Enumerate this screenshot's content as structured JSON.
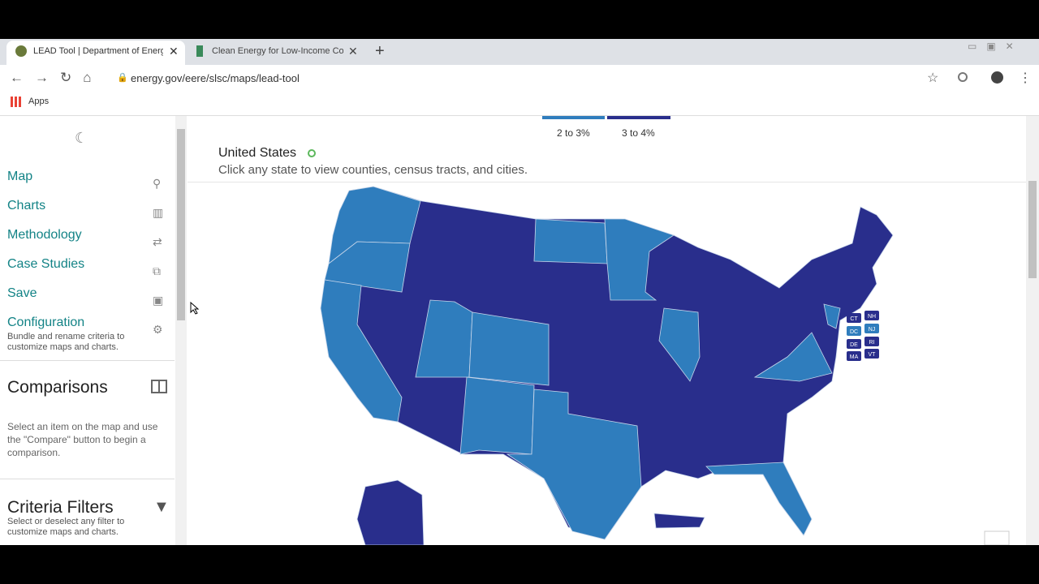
{
  "browser": {
    "tabs": [
      "LEAD Tool | Department of Energ",
      "Clean Energy for Low-Income Co"
    ],
    "url": "energy.gov/eere/slsc/maps/lead-tool",
    "bookmarks": [
      "Apps"
    ]
  },
  "sidebar": {
    "nav": [
      {
        "label": "Map"
      },
      {
        "label": "Charts"
      },
      {
        "label": "Methodology"
      },
      {
        "label": "Case Studies"
      },
      {
        "label": "Save"
      },
      {
        "label": "Configuration",
        "description": "Bundle and rename criteria to customize maps and charts."
      }
    ],
    "comparisons": {
      "title": "Comparisons",
      "text": "Select an item on the map and use the \"Compare\" button to begin a comparison."
    },
    "criteria_filters": {
      "title": "Criteria Filters",
      "text": "Select or deselect any filter to customize maps and charts."
    }
  },
  "map": {
    "legend": [
      "2 to 3%",
      "3 to 4%"
    ],
    "title": "United States",
    "subtitle": "Click any state to view counties, census tracts, and cities.",
    "state_labels": [
      "CT",
      "NH",
      "DC",
      "NJ",
      "DE",
      "RI",
      "MA",
      "VT"
    ]
  }
}
